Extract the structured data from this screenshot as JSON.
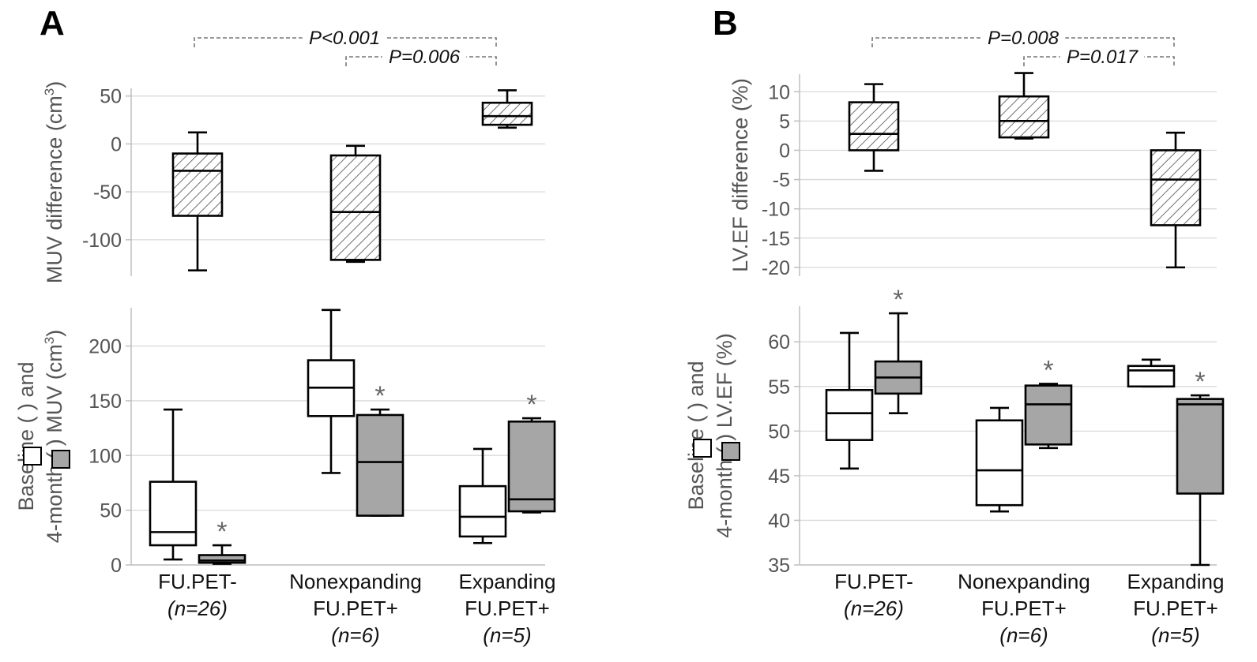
{
  "panels": {
    "A": {
      "label": "A",
      "categories": [
        [
          "FU.PET-",
          "(n=26)"
        ],
        [
          "Nonexpanding",
          "FU.PET+",
          "(n=6)"
        ],
        [
          "Expanding",
          "FU.PET+",
          "(n=5)"
        ]
      ],
      "pvalues": [
        "P<0.001",
        "P=0.006"
      ],
      "top": {
        "ylabel": "MUV difference (cm3)",
        "yticks": [
          "50",
          "0",
          "-50",
          "-100"
        ],
        "ylim": [
          -138,
          58
        ]
      },
      "bottom": {
        "ylabel_line1": "Baseline (   ) and",
        "ylabel_line2": "4-month (   ) MUV (cm3)",
        "yticks": [
          "200",
          "150",
          "100",
          "50",
          "0"
        ],
        "ylim": [
          0,
          235
        ],
        "star": "*"
      }
    },
    "B": {
      "label": "B",
      "categories": [
        [
          "FU.PET-",
          "(n=26)"
        ],
        [
          "Nonexpanding",
          "FU.PET+",
          "(n=6)"
        ],
        [
          "Expanding",
          "FU.PET+",
          "(n=5)"
        ]
      ],
      "pvalues": [
        "P=0.008",
        "P=0.017"
      ],
      "top": {
        "ylabel": "LV.EF difference (%)",
        "yticks": [
          "10",
          "5",
          "0",
          "-5",
          "-10",
          "-15",
          "-20"
        ],
        "ylim": [
          -21.5,
          13
        ]
      },
      "bottom": {
        "ylabel_line1": "Baseline (   ) and",
        "ylabel_line2": "4-month (   ) LV.EF (%)",
        "yticks": [
          "60",
          "55",
          "50",
          "45",
          "40",
          "35"
        ],
        "ylim": [
          35,
          64
        ],
        "star": "*"
      }
    }
  },
  "chart_data": [
    {
      "type": "box",
      "panel": "A-top",
      "ylabel": "MUV difference (cm3)",
      "categories": [
        "FU.PET- (n=26)",
        "Nonexpanding FU.PET+ (n=6)",
        "Expanding FU.PET+ (n=5)"
      ],
      "series": [
        {
          "name": "difference",
          "pattern": "hatched",
          "boxes": [
            {
              "min": -132,
              "q1": -75,
              "median": -28,
              "q3": -10,
              "max": 12
            },
            {
              "min": -123,
              "q1": -121,
              "median": -71,
              "q3": -12,
              "max": -2
            },
            {
              "min": 17,
              "q1": 20,
              "median": 29,
              "q3": 43,
              "max": 56
            }
          ]
        }
      ],
      "ylim": [
        -138,
        58
      ],
      "annotations": [
        {
          "text": "P<0.001",
          "from": 0,
          "to": 2
        },
        {
          "text": "P=0.006",
          "from": 1,
          "to": 2
        }
      ]
    },
    {
      "type": "box",
      "panel": "A-bottom",
      "ylabel": "Baseline and 4-month MUV (cm3)",
      "categories": [
        "FU.PET- (n=26)",
        "Nonexpanding FU.PET+ (n=6)",
        "Expanding FU.PET+ (n=5)"
      ],
      "series": [
        {
          "name": "Baseline",
          "color": "#ffffff",
          "boxes": [
            {
              "min": 5,
              "q1": 18,
              "median": 30,
              "q3": 76,
              "max": 142
            },
            {
              "min": 84,
              "q1": 136,
              "median": 162,
              "q3": 187,
              "max": 233
            },
            {
              "min": 20,
              "q1": 26,
              "median": 44,
              "q3": 72,
              "max": 106
            }
          ]
        },
        {
          "name": "4-month",
          "color": "#a6a6a6",
          "boxes": [
            {
              "min": 1,
              "q1": 2,
              "median": 4,
              "q3": 9,
              "max": 18
            },
            {
              "min": 45,
              "q1": 45,
              "median": 94,
              "q3": 137,
              "max": 142
            },
            {
              "min": 48,
              "q1": 49,
              "median": 60,
              "q3": 131,
              "max": 134
            }
          ]
        }
      ],
      "ylim": [
        0,
        235
      ],
      "significance_marks": [
        "*",
        "*",
        "*"
      ]
    },
    {
      "type": "box",
      "panel": "B-top",
      "ylabel": "LV.EF difference (%)",
      "categories": [
        "FU.PET- (n=26)",
        "Nonexpanding FU.PET+ (n=6)",
        "Expanding FU.PET+ (n=5)"
      ],
      "series": [
        {
          "name": "difference",
          "pattern": "hatched",
          "boxes": [
            {
              "min": -3.5,
              "q1": 0,
              "median": 2.8,
              "q3": 8.2,
              "max": 11.3
            },
            {
              "min": 2,
              "q1": 2.2,
              "median": 5,
              "q3": 9.2,
              "max": 13.2
            },
            {
              "min": -20,
              "q1": -12.8,
              "median": -5,
              "q3": 0,
              "max": 3
            }
          ]
        }
      ],
      "ylim": [
        -21.5,
        13
      ],
      "annotations": [
        {
          "text": "P=0.008",
          "from": 0,
          "to": 2
        },
        {
          "text": "P=0.017",
          "from": 1,
          "to": 2
        }
      ]
    },
    {
      "type": "box",
      "panel": "B-bottom",
      "ylabel": "Baseline and 4-month LV.EF (%)",
      "categories": [
        "FU.PET- (n=26)",
        "Nonexpanding FU.PET+ (n=6)",
        "Expanding FU.PET+ (n=5)"
      ],
      "series": [
        {
          "name": "Baseline",
          "color": "#ffffff",
          "boxes": [
            {
              "min": 45.8,
              "q1": 49,
              "median": 52,
              "q3": 54.6,
              "max": 61
            },
            {
              "min": 41,
              "q1": 41.7,
              "median": 45.6,
              "q3": 51.2,
              "max": 52.6
            },
            {
              "min": 55,
              "q1": 55,
              "median": 56.8,
              "q3": 57.3,
              "max": 58
            }
          ]
        },
        {
          "name": "4-month",
          "color": "#a6a6a6",
          "boxes": [
            {
              "min": 52,
              "q1": 54.2,
              "median": 56,
              "q3": 57.8,
              "max": 63.2
            },
            {
              "min": 48.1,
              "q1": 48.5,
              "median": 53,
              "q3": 55.1,
              "max": 55.3
            },
            {
              "min": 35,
              "q1": 43,
              "median": 53,
              "q3": 53.6,
              "max": 54
            }
          ]
        }
      ],
      "ylim": [
        35,
        64
      ],
      "significance_marks": [
        "*",
        "*",
        "*"
      ]
    }
  ]
}
